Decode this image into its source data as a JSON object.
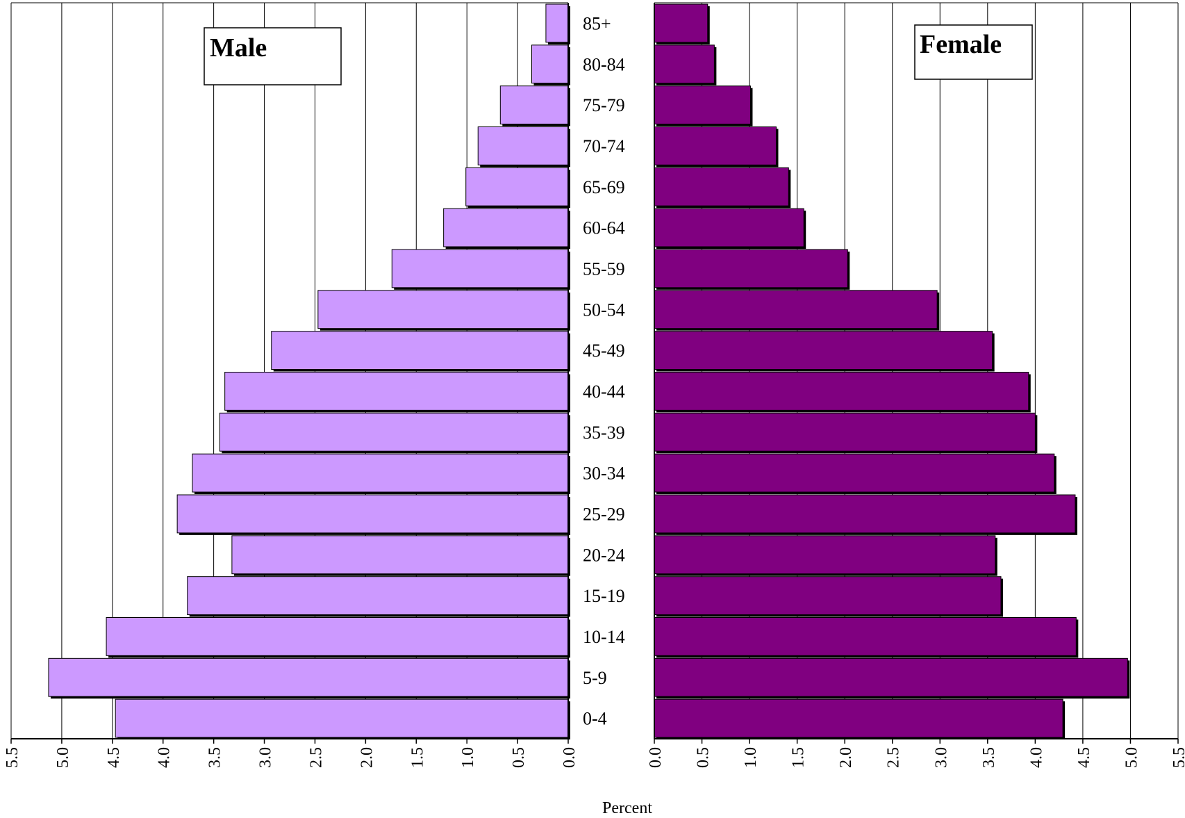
{
  "chart_data": {
    "type": "bar",
    "subtype": "population-pyramid",
    "categories": [
      "85+",
      "80-84",
      "75-79",
      "70-74",
      "65-69",
      "60-64",
      "55-59",
      "50-54",
      "45-49",
      "40-44",
      "35-39",
      "30-34",
      "25-29",
      "20-24",
      "15-19",
      "10-14",
      "5-9",
      "0-4"
    ],
    "series": [
      {
        "name": "Male",
        "color": "#cc99ff",
        "values": [
          0.22,
          0.36,
          0.67,
          0.89,
          1.01,
          1.23,
          1.74,
          2.47,
          2.93,
          3.39,
          3.44,
          3.71,
          3.86,
          3.32,
          3.76,
          4.56,
          5.13,
          4.47
        ]
      },
      {
        "name": "Female",
        "color": "#800080",
        "values": [
          0.56,
          0.63,
          1.01,
          1.28,
          1.41,
          1.57,
          2.03,
          2.97,
          3.55,
          3.93,
          4.0,
          4.2,
          4.42,
          3.58,
          3.64,
          4.43,
          4.97,
          4.29
        ]
      }
    ],
    "xlabel": "Percent",
    "ylabel": "",
    "xlim": [
      0,
      5.5
    ],
    "xticks": [
      "0.0",
      "0.5",
      "1.0",
      "1.5",
      "2.0",
      "2.5",
      "3.0",
      "3.5",
      "4.0",
      "4.5",
      "5.0",
      "5.5"
    ],
    "male_ticks": [
      "5.5",
      "5.0",
      "4.5",
      "4.0",
      "3.5",
      "3.0",
      "2.5",
      "2.0",
      "1.5",
      "1.0",
      "0.5",
      "0.0"
    ],
    "female_ticks": [
      "0.0",
      "0.5",
      "1.0",
      "1.5",
      "2.0",
      "2.5",
      "3.0",
      "3.5",
      "4.0",
      "4.5",
      "5.0",
      "5.5"
    ],
    "grid": true,
    "legend_placement": "in-panel titles"
  }
}
